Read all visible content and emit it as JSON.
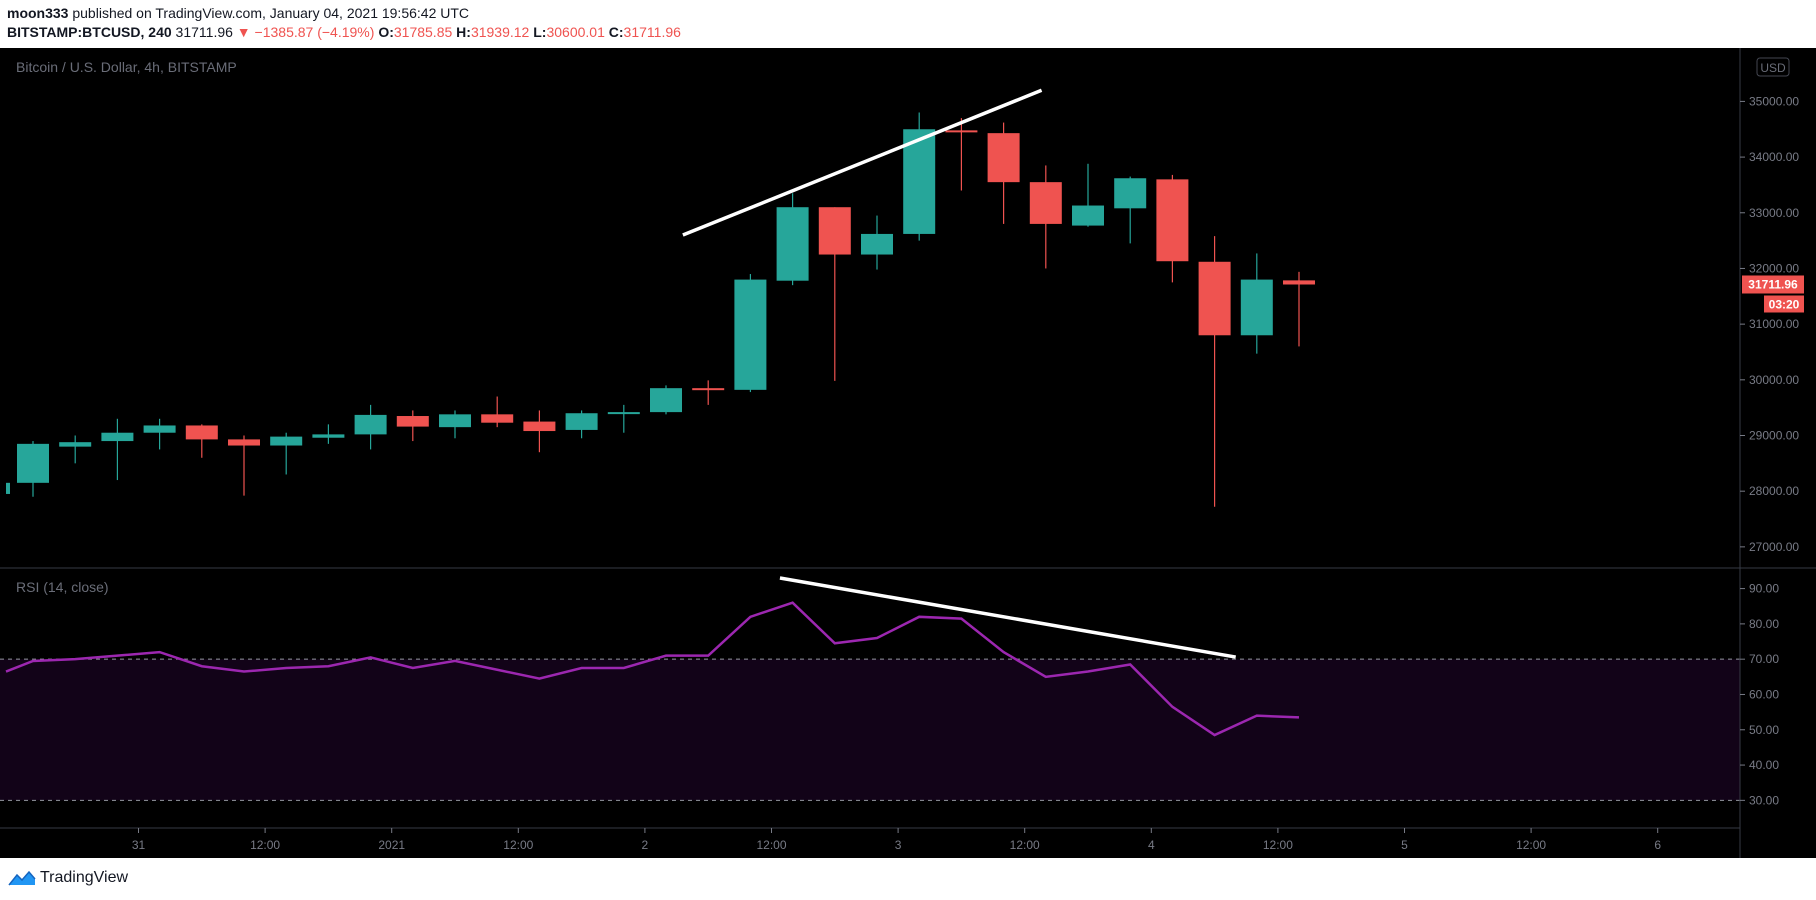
{
  "header": {
    "author": "moon333",
    "published_text": "published on TradingView.com, January 04, 2021 19:56:42 UTC",
    "symbol": "BITSTAMP:BTCUSD, 240",
    "last": "31711.96",
    "change": "▼ −1385.87 (−4.19%)",
    "o_label": "O:",
    "o_value": "31785.85",
    "h_label": "H:",
    "h_value": "31939.12",
    "l_label": "L:",
    "l_value": "30600.01",
    "c_label": "C:",
    "c_value": "31711.96"
  },
  "footer": {
    "brand": "TradingView",
    "logo_icon": "tradingview-logo-icon"
  },
  "colors": {
    "up": "#26a69a",
    "down": "#ef5350",
    "rsi_line": "#9c27b0",
    "rsi_band": "#120318",
    "background": "#000000",
    "price_tag": "#ef5350"
  },
  "chart_data": [
    {
      "type": "candlestick",
      "title": "Bitcoin / U.S. Dollar, 4h, BITSTAMP",
      "currency_badge": "USD",
      "ylim": [
        26800,
        35600
      ],
      "yticks": [
        "35000.00",
        "34000.00",
        "33000.00",
        "32000.00",
        "31000.00",
        "30000.00",
        "29000.00",
        "28000.00",
        "27000.00"
      ],
      "x_labels": [
        {
          "label": "31",
          "i": 2.5
        },
        {
          "label": "12:00",
          "i": 5.5
        },
        {
          "label": "2021",
          "i": 8.5
        },
        {
          "label": "12:00",
          "i": 11.5
        },
        {
          "label": "2",
          "i": 14.5
        },
        {
          "label": "12:00",
          "i": 17.5
        },
        {
          "label": "3",
          "i": 20.5
        },
        {
          "label": "12:00",
          "i": 23.5
        },
        {
          "label": "4",
          "i": 26.5
        },
        {
          "label": "12:00",
          "i": 29.5
        },
        {
          "label": "5",
          "i": 32.5
        },
        {
          "label": "12:00",
          "i": 35.5
        },
        {
          "label": "6",
          "i": 38.5
        }
      ],
      "candles": [
        {
          "o": 28150,
          "h": 28900,
          "l": 27900,
          "c": 28850
        },
        {
          "o": 28800,
          "h": 29000,
          "l": 28500,
          "c": 28880
        },
        {
          "o": 28900,
          "h": 29300,
          "l": 28200,
          "c": 29050
        },
        {
          "o": 29050,
          "h": 29300,
          "l": 28750,
          "c": 29180
        },
        {
          "o": 29180,
          "h": 29200,
          "l": 28600,
          "c": 28930
        },
        {
          "o": 28930,
          "h": 29000,
          "l": 27920,
          "c": 28820
        },
        {
          "o": 28820,
          "h": 29050,
          "l": 28300,
          "c": 28980
        },
        {
          "o": 28960,
          "h": 29200,
          "l": 28850,
          "c": 29020
        },
        {
          "o": 29020,
          "h": 29550,
          "l": 28750,
          "c": 29370
        },
        {
          "o": 29350,
          "h": 29450,
          "l": 28900,
          "c": 29160
        },
        {
          "o": 29150,
          "h": 29450,
          "l": 28950,
          "c": 29380
        },
        {
          "o": 29380,
          "h": 29700,
          "l": 29150,
          "c": 29230
        },
        {
          "o": 29250,
          "h": 29450,
          "l": 28700,
          "c": 29080
        },
        {
          "o": 29100,
          "h": 29450,
          "l": 28950,
          "c": 29400
        },
        {
          "o": 29400,
          "h": 29550,
          "l": 29050,
          "c": 29420
        },
        {
          "o": 29420,
          "h": 29900,
          "l": 29380,
          "c": 29850
        },
        {
          "o": 29850,
          "h": 29990,
          "l": 29550,
          "c": 29820
        },
        {
          "o": 29820,
          "h": 31900,
          "l": 29780,
          "c": 31800
        },
        {
          "o": 31780,
          "h": 33350,
          "l": 31700,
          "c": 33100
        },
        {
          "o": 33100,
          "h": 33100,
          "l": 29980,
          "c": 32250
        },
        {
          "o": 32250,
          "h": 32950,
          "l": 31980,
          "c": 32620
        },
        {
          "o": 32620,
          "h": 34800,
          "l": 32500,
          "c": 34500
        },
        {
          "o": 34480,
          "h": 34700,
          "l": 33400,
          "c": 34450
        },
        {
          "o": 34430,
          "h": 34620,
          "l": 32800,
          "c": 33550
        },
        {
          "o": 33550,
          "h": 33850,
          "l": 32000,
          "c": 32800
        },
        {
          "o": 32770,
          "h": 33880,
          "l": 32750,
          "c": 33130
        },
        {
          "o": 33080,
          "h": 33650,
          "l": 32450,
          "c": 33620
        },
        {
          "o": 33600,
          "h": 33680,
          "l": 31750,
          "c": 32130
        },
        {
          "o": 32120,
          "h": 32580,
          "l": 27720,
          "c": 30800
        },
        {
          "o": 30800,
          "h": 32270,
          "l": 30470,
          "c": 31800
        },
        {
          "o": 31785.85,
          "h": 31939.12,
          "l": 30600.01,
          "c": 31711.96
        }
      ],
      "trendline": {
        "from": {
          "i": 15.4,
          "v": 32600
        },
        "to": {
          "i": 23.9,
          "v": 35200
        }
      },
      "last_price_tag": "31711.96",
      "countdown": "03:20"
    },
    {
      "type": "line",
      "title": "RSI (14, close)",
      "ylim": [
        25,
        93
      ],
      "yticks": [
        "90.00",
        "80.00",
        "70.00",
        "60.00",
        "50.00",
        "40.00",
        "30.00"
      ],
      "band": [
        30,
        70
      ],
      "values": [
        69.5,
        70,
        71,
        72,
        68,
        66.5,
        67.5,
        68,
        70.5,
        67.5,
        69.5,
        67,
        64.5,
        67.5,
        67.5,
        71,
        71,
        82,
        86,
        74.5,
        76,
        82,
        81.5,
        72,
        65,
        66.5,
        68.5,
        56.5,
        48.5,
        54,
        53.5
      ],
      "trendline": {
        "from": {
          "i": 17.7,
          "v": 93
        },
        "to": {
          "i": 28.5,
          "v": 70.6
        }
      }
    }
  ]
}
